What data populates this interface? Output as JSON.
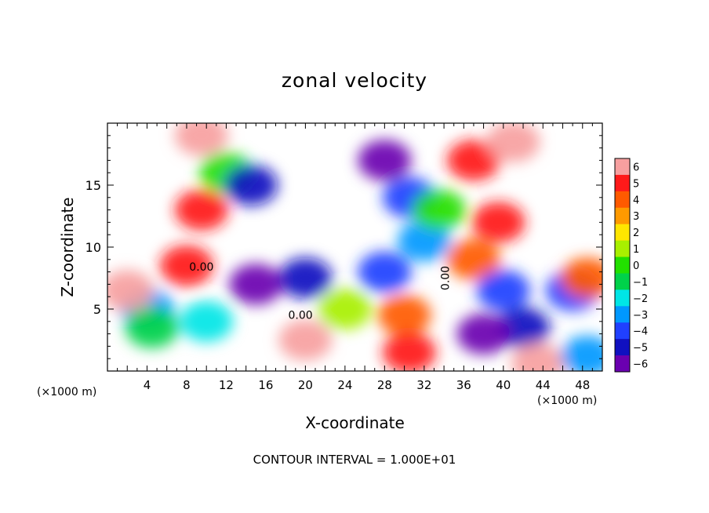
{
  "chart_data": {
    "type": "heatmap",
    "title": "zonal velocity",
    "xlabel": "X-coordinate",
    "ylabel": "Z-coordinate",
    "x_unit_left": "(×1000 m)",
    "x_unit_right": "(×1000 m)",
    "xlim": [
      0,
      50
    ],
    "ylim": [
      0,
      20
    ],
    "x_ticks": [
      4,
      8,
      12,
      16,
      20,
      24,
      28,
      32,
      36,
      40,
      44,
      48
    ],
    "y_ticks": [
      5,
      10,
      15
    ],
    "colorbar": {
      "min": -6,
      "max": 6,
      "ticks": [
        6,
        5,
        4,
        3,
        2,
        1,
        0,
        -1,
        -2,
        -3,
        -4,
        -5,
        -6
      ]
    },
    "contour_label": "0.00",
    "footer": "CONTOUR INTERVAL = 1.000E+01",
    "features": [
      {
        "x": 9.5,
        "z": 19,
        "value": 6
      },
      {
        "x": 9.5,
        "z": 13,
        "value": 5
      },
      {
        "x": 8,
        "z": 8.5,
        "value": 5
      },
      {
        "x": 12,
        "z": 16,
        "value": 0
      },
      {
        "x": 14.5,
        "z": 15,
        "value": -5
      },
      {
        "x": 15,
        "z": 7,
        "value": -6
      },
      {
        "x": 20,
        "z": 7.5,
        "value": -5
      },
      {
        "x": 28,
        "z": 8,
        "value": -4
      },
      {
        "x": 4,
        "z": 5,
        "value": -3
      },
      {
        "x": 4.5,
        "z": 3.5,
        "value": -1
      },
      {
        "x": 10,
        "z": 4,
        "value": -2
      },
      {
        "x": 24,
        "z": 5,
        "value": 1
      },
      {
        "x": 30,
        "z": 4.5,
        "value": 4
      },
      {
        "x": 30.5,
        "z": 1.5,
        "value": 5
      },
      {
        "x": 20,
        "z": 2.5,
        "value": 6
      },
      {
        "x": 28,
        "z": 17,
        "value": -6
      },
      {
        "x": 30.5,
        "z": 14,
        "value": -4
      },
      {
        "x": 32,
        "z": 10.5,
        "value": -3
      },
      {
        "x": 33.5,
        "z": 13,
        "value": 0
      },
      {
        "x": 37,
        "z": 17,
        "value": 5
      },
      {
        "x": 41,
        "z": 18.5,
        "value": 6
      },
      {
        "x": 39.5,
        "z": 12,
        "value": 5
      },
      {
        "x": 37,
        "z": 9,
        "value": 4
      },
      {
        "x": 40,
        "z": 6.5,
        "value": -4
      },
      {
        "x": 42,
        "z": 3.5,
        "value": -5
      },
      {
        "x": 38,
        "z": 3,
        "value": -6
      },
      {
        "x": 47,
        "z": 6.5,
        "value": -4
      },
      {
        "x": 48.5,
        "z": 7.5,
        "value": 4
      },
      {
        "x": 43.5,
        "z": 0.6,
        "value": 6
      },
      {
        "x": 48.5,
        "z": 1.2,
        "value": -3
      },
      {
        "x": 2,
        "z": 6.5,
        "value": 6
      }
    ]
  }
}
